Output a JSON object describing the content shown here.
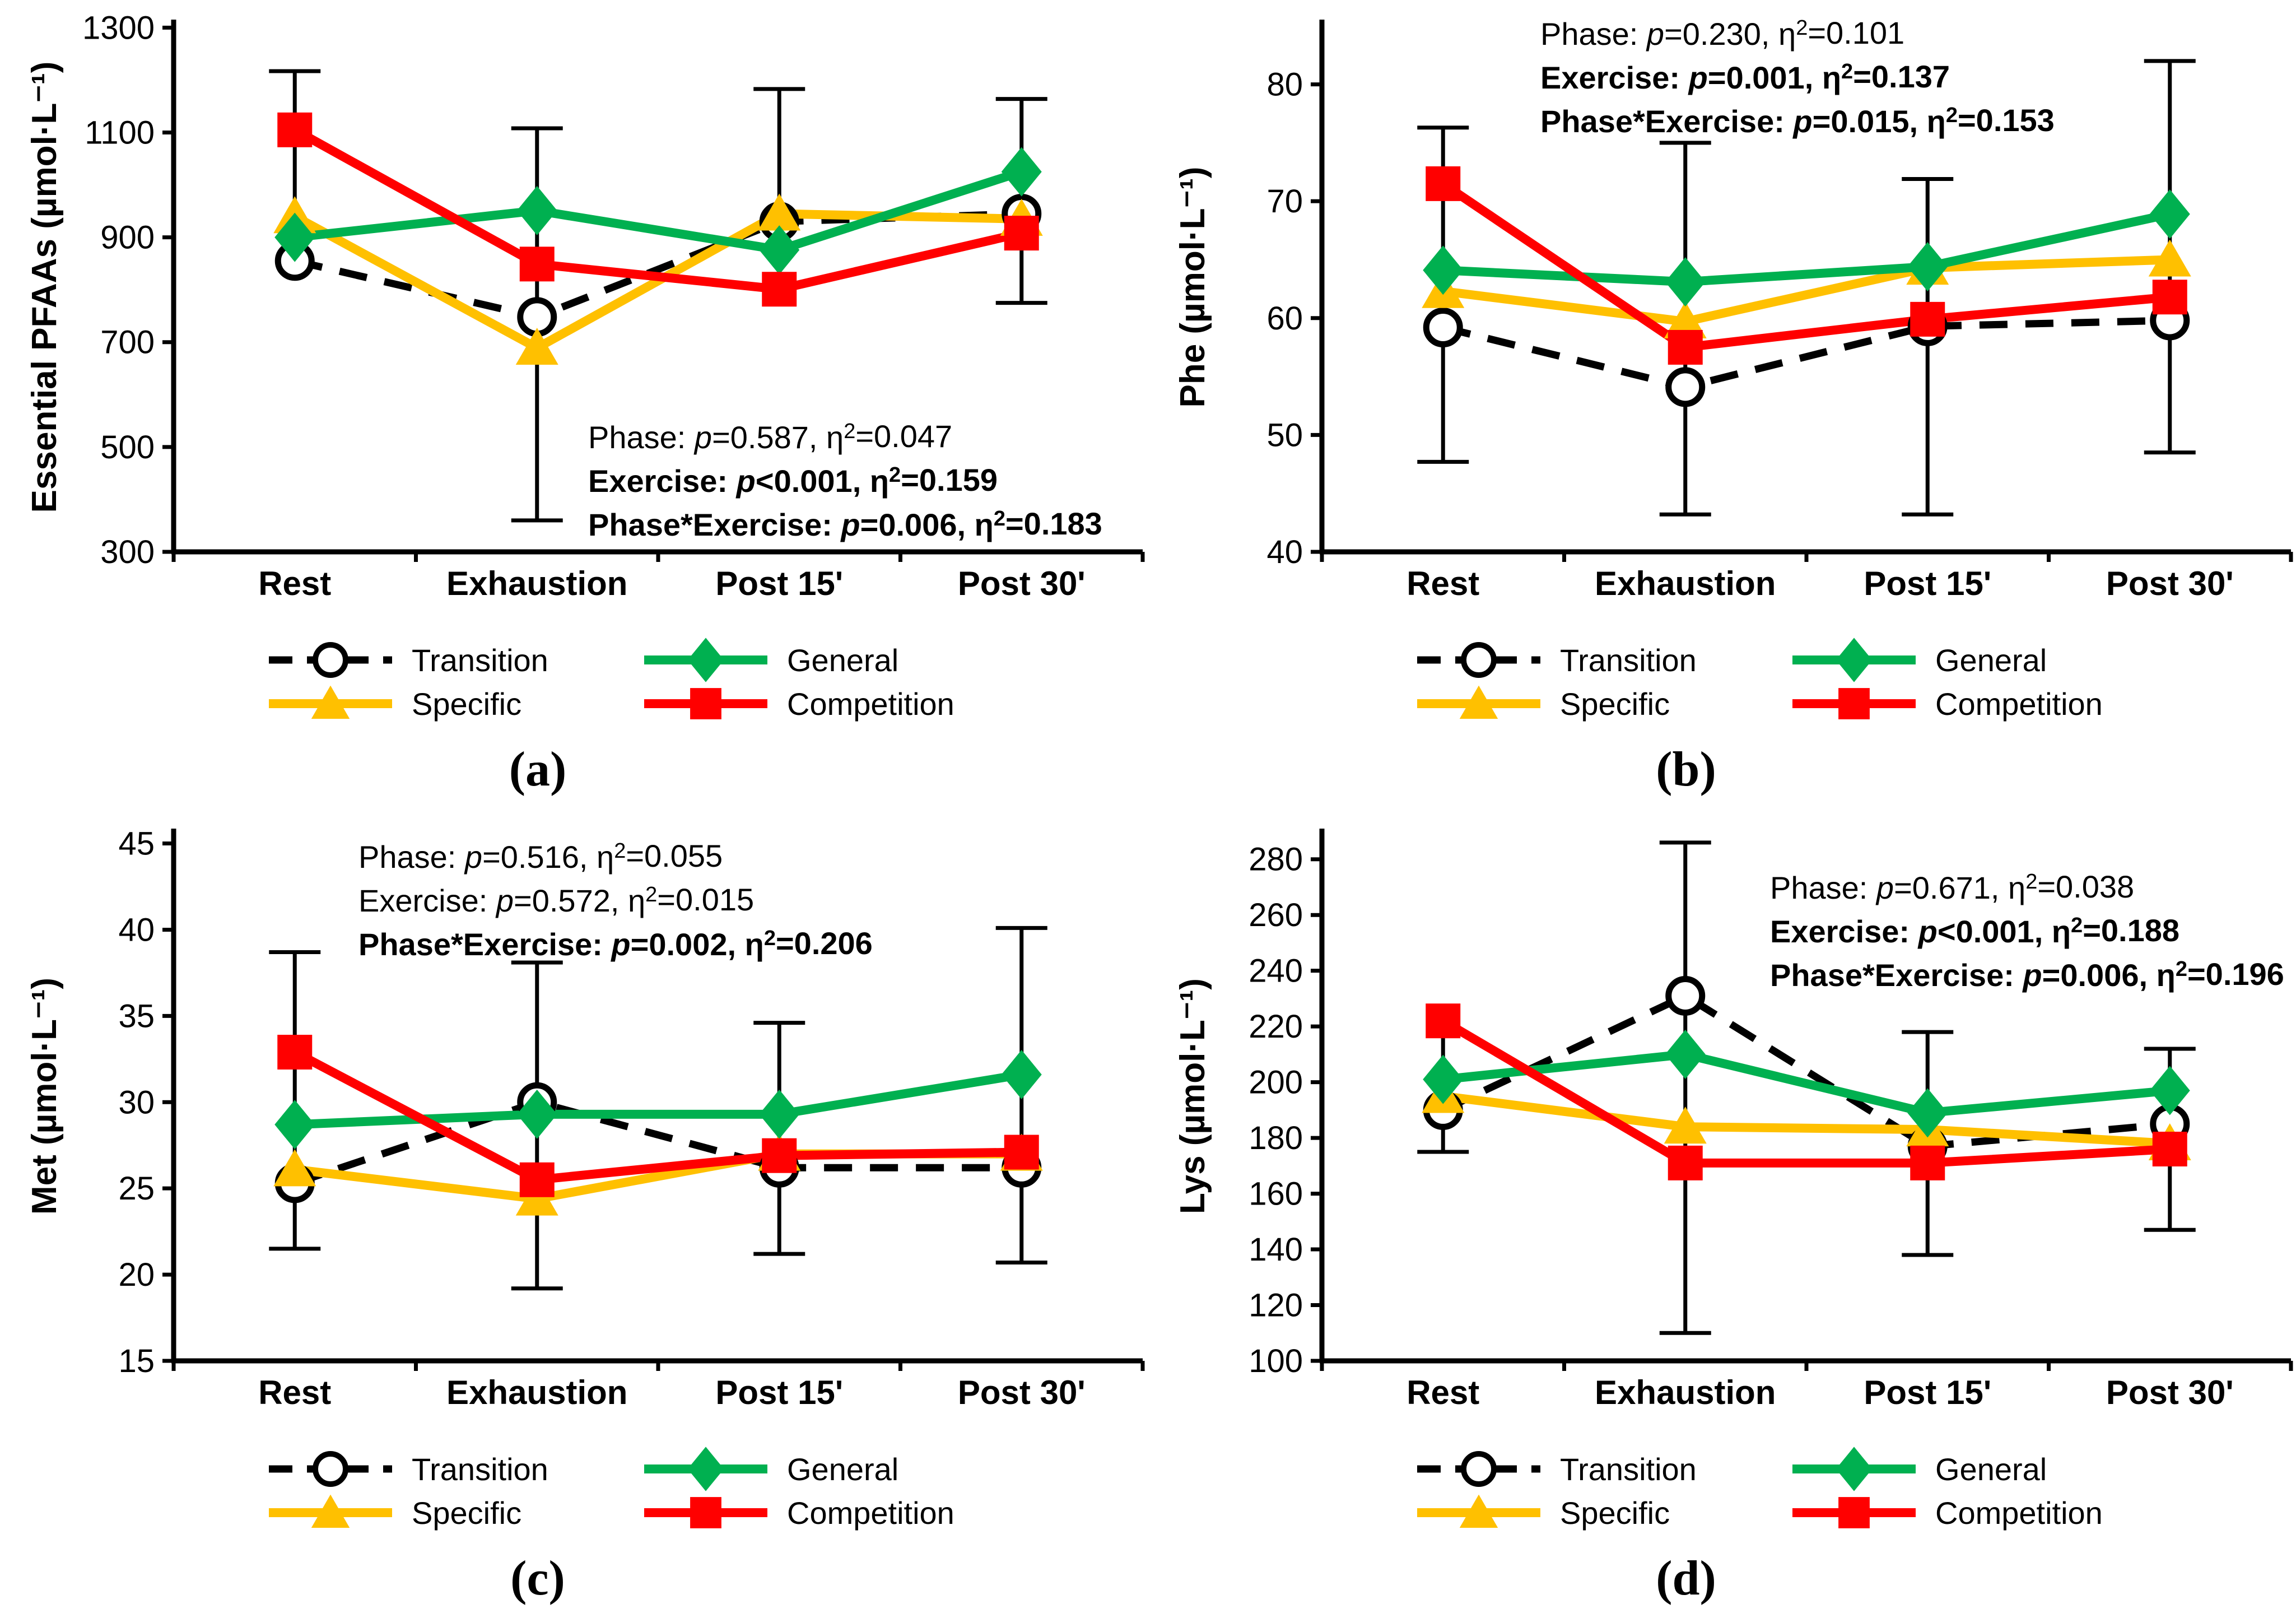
{
  "figure": {
    "background": "#FFFFFF",
    "text_color": "#000000",
    "legend": {
      "items": [
        {
          "label": "Transition",
          "series": "transition"
        },
        {
          "label": "Specific",
          "series": "specific"
        },
        {
          "label": "General",
          "series": "general"
        },
        {
          "label": "Competition",
          "series": "competition"
        }
      ]
    },
    "series_styles": {
      "transition": {
        "color": "#000000",
        "dash": true,
        "marker": "circle-open"
      },
      "specific": {
        "color": "#FFC000",
        "dash": false,
        "marker": "triangle"
      },
      "general": {
        "color": "#00B050",
        "dash": false,
        "marker": "diamond"
      },
      "competition": {
        "color": "#FF0000",
        "dash": false,
        "marker": "square"
      }
    }
  },
  "chart_data": [
    {
      "type": "line",
      "panel": "a",
      "caption": "(a)",
      "ylabel": "Essential PFAAs (µmol·L⁻¹)",
      "categories": [
        "Rest",
        "Exhaustion",
        "Post 15'",
        "Post 30'"
      ],
      "yticks": [
        300,
        500,
        700,
        900,
        1100,
        1300
      ],
      "ylim": [
        300,
        1310
      ],
      "grid": false,
      "series": [
        {
          "name": "Transition",
          "key": "transition",
          "values": [
            855,
            748,
            930,
            945
          ]
        },
        {
          "name": "Specific",
          "key": "specific",
          "values": [
            940,
            689,
            945,
            935
          ]
        },
        {
          "name": "General",
          "key": "general",
          "values": [
            900,
            951,
            876,
            1025
          ]
        },
        {
          "name": "Competition",
          "key": "competition",
          "values": [
            1105,
            849,
            801,
            908
          ]
        }
      ],
      "error_bars": [
        {
          "x": 0,
          "low": 855,
          "high": 1217,
          "cap_low": false,
          "cap_high": true
        },
        {
          "x": 1,
          "low": 360,
          "high": 1108,
          "cap_low": true,
          "cap_high": true
        },
        {
          "x": 2,
          "low": 801,
          "high": 1183,
          "cap_low": false,
          "cap_high": true
        },
        {
          "x": 3,
          "low": 775,
          "high": 1164,
          "cap_low": true,
          "cap_high": true
        }
      ],
      "stats": {
        "x": 1050,
        "y": 800,
        "lines": [
          {
            "text": "Phase: p=0.587, η²=0.047",
            "bold": false
          },
          {
            "text": "Exercise: p<0.001, η²=0.159",
            "bold": true
          },
          {
            "text": "Phase*Exercise: p=0.006, η²=0.183",
            "bold": true
          }
        ]
      }
    },
    {
      "type": "line",
      "panel": "b",
      "caption": "(b)",
      "ylabel": "Phe (µmol·L⁻¹)",
      "categories": [
        "Rest",
        "Exhaustion",
        "Post 15'",
        "Post 30'"
      ],
      "yticks": [
        40,
        50,
        60,
        70,
        80
      ],
      "ylim": [
        40,
        85.3
      ],
      "grid": false,
      "series": [
        {
          "name": "Transition",
          "key": "transition",
          "values": [
            59.2,
            54.1,
            59.3,
            59.8
          ]
        },
        {
          "name": "Specific",
          "key": "specific",
          "values": [
            62.3,
            59.7,
            64.3,
            65.0
          ]
        },
        {
          "name": "General",
          "key": "general",
          "values": [
            64.1,
            63.1,
            64.4,
            68.9
          ]
        },
        {
          "name": "Competition",
          "key": "competition",
          "values": [
            71.5,
            57.5,
            59.9,
            61.8
          ]
        }
      ],
      "error_bars": [
        {
          "x": 0,
          "low": 47.7,
          "high": 76.3,
          "cap_low": true,
          "cap_high": true
        },
        {
          "x": 1,
          "low": 43.2,
          "high": 75.0,
          "cap_low": true,
          "cap_high": true
        },
        {
          "x": 2,
          "low": 43.2,
          "high": 71.9,
          "cap_low": true,
          "cap_high": true
        },
        {
          "x": 3,
          "low": 48.5,
          "high": 82.0,
          "cap_low": true,
          "cap_high": true
        }
      ],
      "stats": {
        "x": 700,
        "y": 80,
        "lines": [
          {
            "text": "Phase: p=0.230, η²=0.101",
            "bold": false
          },
          {
            "text": "Exercise: p=0.001, η²=0.137",
            "bold": true
          },
          {
            "text": "Phase*Exercise: p=0.015, η²=0.153",
            "bold": true
          }
        ]
      }
    },
    {
      "type": "line",
      "panel": "c",
      "caption": "(c)",
      "ylabel": "Met (µmol·L⁻¹)",
      "categories": [
        "Rest",
        "Exhaustion",
        "Post 15'",
        "Post 30'"
      ],
      "yticks": [
        15,
        20,
        25,
        30,
        35,
        40,
        45
      ],
      "ylim": [
        15,
        45.7
      ],
      "grid": false,
      "series": [
        {
          "name": "Transition",
          "key": "transition",
          "values": [
            25.3,
            30.0,
            26.2,
            26.2
          ]
        },
        {
          "name": "Specific",
          "key": "specific",
          "values": [
            26.1,
            24.4,
            27.0,
            27.0
          ]
        },
        {
          "name": "General",
          "key": "general",
          "values": [
            28.7,
            29.3,
            29.3,
            31.6
          ]
        },
        {
          "name": "Competition",
          "key": "competition",
          "values": [
            32.9,
            25.5,
            26.9,
            27.1
          ]
        }
      ],
      "error_bars": [
        {
          "x": 0,
          "low": 21.5,
          "high": 38.7,
          "cap_low": true,
          "cap_high": true
        },
        {
          "x": 1,
          "low": 19.2,
          "high": 38.1,
          "cap_low": true,
          "cap_high": true
        },
        {
          "x": 2,
          "low": 21.2,
          "high": 34.6,
          "cap_low": true,
          "cap_high": true
        },
        {
          "x": 3,
          "low": 20.7,
          "high": 40.1,
          "cap_low": true,
          "cap_high": true
        }
      ],
      "stats": {
        "x": 640,
        "y": 105,
        "lines": [
          {
            "text": "Phase: p=0.516, η²=0.055",
            "bold": false
          },
          {
            "text": "Exercise: p=0.572, η²=0.015",
            "bold": false
          },
          {
            "text": "Phase*Exercise: p=0.002, η²=0.206",
            "bold": true
          }
        ]
      }
    },
    {
      "type": "line",
      "panel": "d",
      "caption": "(d)",
      "ylabel": "Lys (µmol·L⁻¹)",
      "categories": [
        "Rest",
        "Exhaustion",
        "Post 15'",
        "Post 30'"
      ],
      "yticks": [
        100,
        120,
        140,
        160,
        180,
        200,
        220,
        240,
        260,
        280
      ],
      "ylim": [
        100,
        290
      ],
      "grid": false,
      "series": [
        {
          "name": "Transition",
          "key": "transition",
          "values": [
            190,
            231,
            177,
            185
          ]
        },
        {
          "name": "Specific",
          "key": "specific",
          "values": [
            195,
            184,
            183,
            178
          ]
        },
        {
          "name": "General",
          "key": "general",
          "values": [
            201,
            210,
            189,
            197
          ]
        },
        {
          "name": "Competition",
          "key": "competition",
          "values": [
            222,
            171,
            171,
            176
          ]
        }
      ],
      "error_bars": [
        {
          "x": 0,
          "low": 175,
          "high": 222,
          "cap_low": true,
          "cap_high": false
        },
        {
          "x": 1,
          "low": 110,
          "high": 286,
          "cap_low": true,
          "cap_high": true
        },
        {
          "x": 2,
          "low": 138,
          "high": 218,
          "cap_low": true,
          "cap_high": true
        },
        {
          "x": 3,
          "low": 147,
          "high": 212,
          "cap_low": true,
          "cap_high": true
        }
      ],
      "stats": {
        "x": 1110,
        "y": 160,
        "lines": [
          {
            "text": "Phase: p=0.671, η²=0.038",
            "bold": false
          },
          {
            "text": "Exercise: p<0.001, η²=0.188",
            "bold": true
          },
          {
            "text": "Phase*Exercise: p=0.006, η²=0.196",
            "bold": true
          }
        ]
      }
    }
  ]
}
